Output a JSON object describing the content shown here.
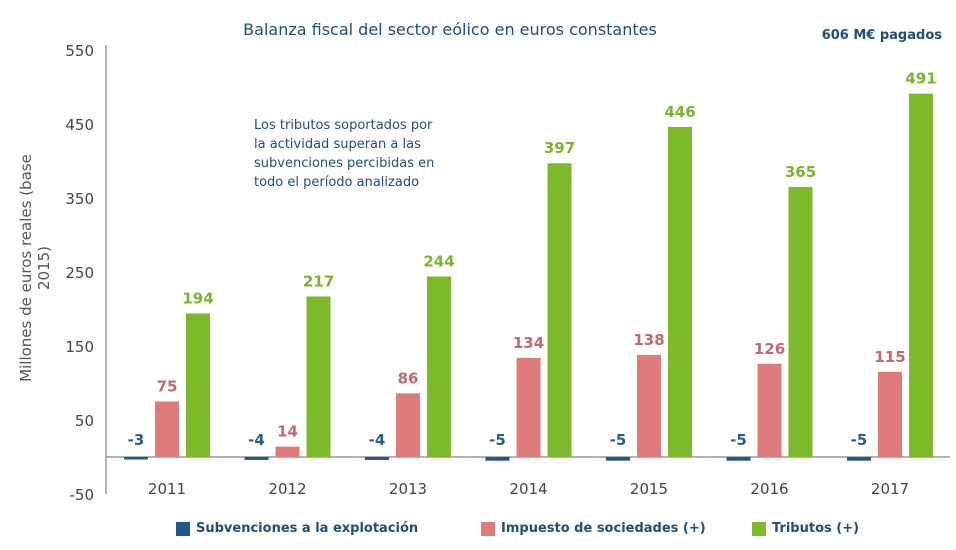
{
  "chart_data": {
    "type": "bar",
    "title": "Balanza fiscal del sector eólico en euros constantes",
    "annotation_top_right": "606 M€ pagados",
    "annotation_note": "Los tributos soportados por\nla actividad superan a las\nsubvenciones percibidas en\ntodo el período analizado",
    "xlabel": "",
    "ylabel": "Millones de euros reales (base 2015)",
    "ylim": [
      -50,
      550
    ],
    "yticks": [
      -50,
      50,
      150,
      250,
      350,
      450,
      550
    ],
    "grid": false,
    "legend_placement": "bottom",
    "categories": [
      "2011",
      "2012",
      "2013",
      "2014",
      "2015",
      "2016",
      "2017"
    ],
    "series": [
      {
        "name": "Subvenciones a la explotación",
        "color": "#1f5a8c",
        "label_color": "#2b5d8c",
        "values": [
          -3,
          -4,
          -4,
          -5,
          -5,
          -5,
          -5
        ]
      },
      {
        "name": "Impuesto de sociedades (+)",
        "color": "#e07b7b",
        "label_color": "#c26a6c",
        "values": [
          75,
          14,
          86,
          134,
          138,
          126,
          115
        ]
      },
      {
        "name": "Tributos (+)",
        "color": "#7cba2a",
        "label_color": "#7ab530",
        "values": [
          194,
          217,
          244,
          397,
          446,
          365,
          491
        ]
      }
    ]
  }
}
